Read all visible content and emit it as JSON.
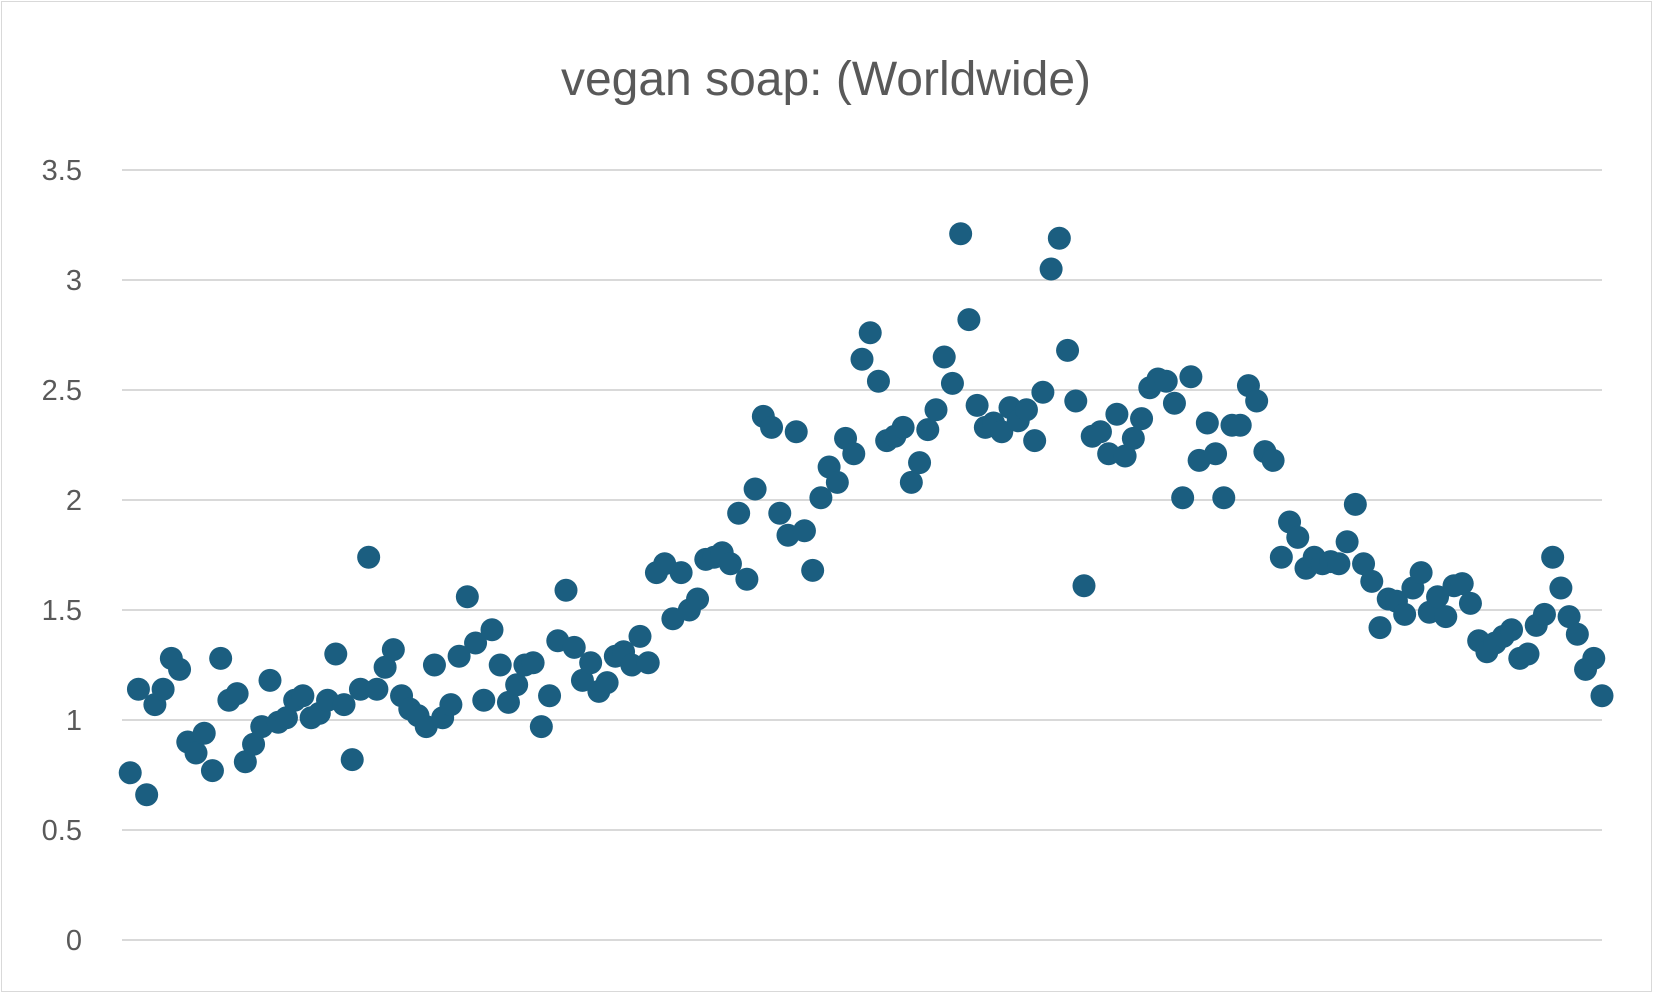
{
  "chart_data": {
    "type": "scatter",
    "title": "vegan soap: (Worldwide)",
    "xlabel": "",
    "ylabel": "",
    "xlim": [
      0,
      180
    ],
    "ylim": [
      0,
      3.5
    ],
    "yticks": [
      "0",
      "0.5",
      "1",
      "1.5",
      "2",
      "2.5",
      "3",
      "3.5"
    ],
    "grid": true,
    "legend": "none",
    "marker_color": "#1b5e80",
    "x": [
      1,
      2,
      3,
      4,
      5,
      6,
      7,
      8,
      9,
      10,
      11,
      12,
      13,
      14,
      15,
      16,
      17,
      18,
      19,
      20,
      21,
      22,
      23,
      24,
      25,
      26,
      27,
      28,
      29,
      30,
      31,
      32,
      33,
      34,
      35,
      36,
      37,
      38,
      39,
      40,
      41,
      42,
      43,
      44,
      45,
      46,
      47,
      48,
      49,
      50,
      51,
      52,
      53,
      54,
      55,
      56,
      57,
      58,
      59,
      60,
      61,
      62,
      63,
      64,
      65,
      66,
      67,
      68,
      69,
      70,
      71,
      72,
      73,
      74,
      75,
      76,
      77,
      78,
      79,
      80,
      81,
      82,
      83,
      84,
      85,
      86,
      87,
      88,
      89,
      90,
      91,
      92,
      93,
      94,
      95,
      96,
      97,
      98,
      99,
      100,
      101,
      102,
      103,
      104,
      105,
      106,
      107,
      108,
      109,
      110,
      111,
      112,
      113,
      114,
      115,
      116,
      117,
      118,
      119,
      120,
      121,
      122,
      123,
      124,
      125,
      126,
      127,
      128,
      129,
      130,
      131,
      132,
      133,
      134,
      135,
      136,
      137,
      138,
      139,
      140,
      141,
      142,
      143,
      144,
      145,
      146,
      147,
      148,
      149,
      150,
      151,
      152,
      153,
      154,
      155,
      156,
      157,
      158,
      159,
      160,
      161,
      162,
      163,
      164,
      165,
      166,
      167,
      168,
      169,
      170,
      171,
      172,
      173,
      174,
      175,
      176,
      177,
      178,
      179,
      180
    ],
    "y": [
      0.76,
      1.14,
      0.66,
      1.07,
      1.14,
      1.28,
      1.23,
      0.9,
      0.85,
      0.94,
      0.77,
      1.28,
      1.09,
      1.12,
      0.81,
      0.89,
      0.97,
      1.18,
      0.99,
      1.01,
      1.09,
      1.11,
      1.01,
      1.03,
      1.09,
      1.3,
      1.07,
      0.82,
      1.14,
      1.74,
      1.14,
      1.24,
      1.32,
      1.11,
      1.05,
      1.02,
      0.97,
      1.25,
      1.01,
      1.07,
      1.29,
      1.56,
      1.35,
      1.09,
      1.41,
      1.25,
      1.08,
      1.16,
      1.25,
      1.26,
      0.97,
      1.11,
      1.36,
      1.59,
      1.33,
      1.18,
      1.26,
      1.13,
      1.17,
      1.29,
      1.31,
      1.25,
      1.38,
      1.26,
      1.67,
      1.71,
      1.46,
      1.67,
      1.5,
      1.55,
      1.73,
      1.74,
      1.76,
      1.71,
      1.94,
      1.64,
      2.05,
      2.38,
      2.33,
      1.94,
      1.84,
      2.31,
      1.86,
      1.68,
      2.01,
      2.15,
      2.08,
      2.28,
      2.21,
      2.64,
      2.76,
      2.54,
      2.27,
      2.29,
      2.33,
      2.08,
      2.17,
      2.32,
      2.41,
      2.65,
      2.53,
      3.21,
      2.82,
      2.43,
      2.33,
      2.35,
      2.31,
      2.42,
      2.36,
      2.41,
      2.27,
      2.49,
      3.05,
      3.19,
      2.68,
      2.45,
      1.61,
      2.29,
      2.31,
      2.21,
      2.39,
      2.2,
      2.28,
      2.37,
      2.51,
      2.55,
      2.54,
      2.44,
      2.01,
      2.56,
      2.18,
      2.35,
      2.21,
      2.01,
      2.34,
      2.34,
      2.52,
      2.45,
      2.22,
      2.18,
      1.74,
      1.9,
      1.83,
      1.69,
      1.74,
      1.71,
      1.72,
      1.71,
      1.81,
      1.98,
      1.71,
      1.63,
      1.42,
      1.55,
      1.54,
      1.48,
      1.6,
      1.67,
      1.49,
      1.56,
      1.47,
      1.61,
      1.62,
      1.53,
      1.36,
      1.31,
      1.35,
      1.38,
      1.41,
      1.28,
      1.3,
      1.43,
      1.48,
      1.74,
      1.6,
      1.47,
      1.39,
      1.23,
      1.28,
      1.11
    ]
  }
}
